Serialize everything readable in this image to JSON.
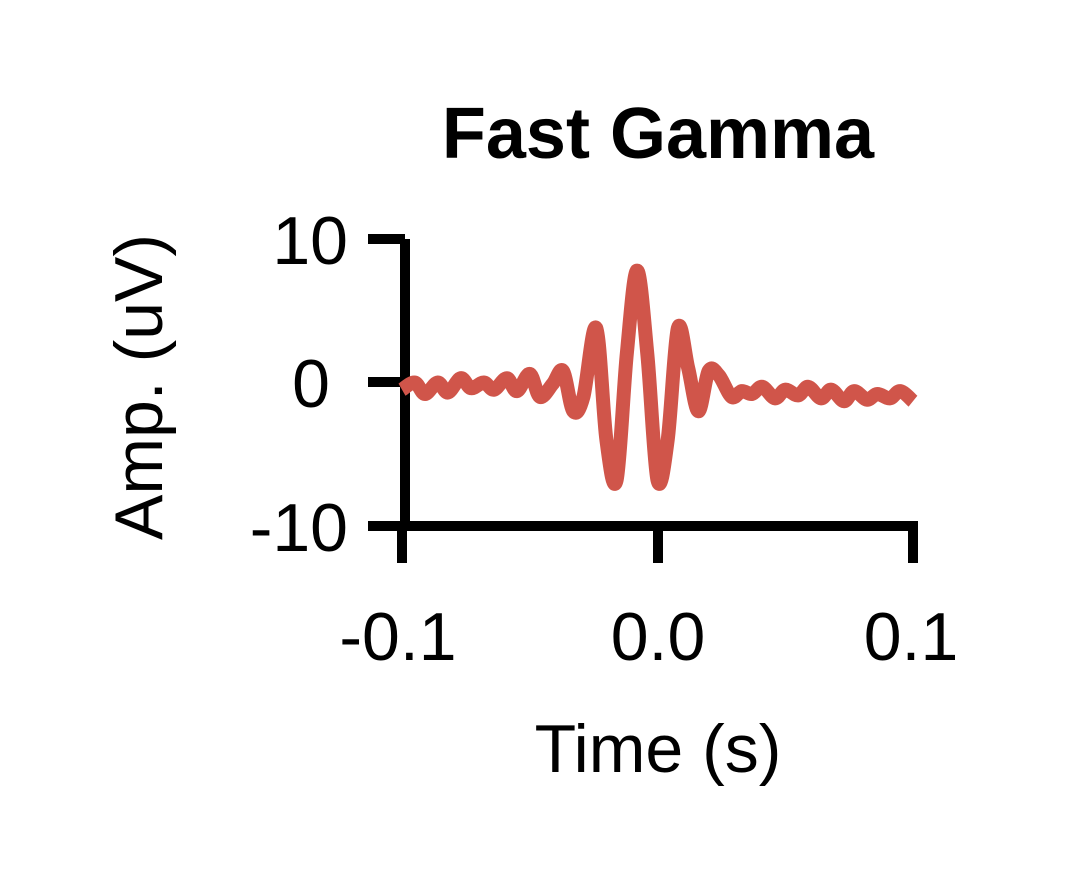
{
  "chart_data": {
    "type": "line",
    "title": "Fast Gamma",
    "xlabel": "Time (s)",
    "ylabel": "Amp. (uV)",
    "xlim": [
      -0.1,
      0.1
    ],
    "ylim": [
      -10,
      10
    ],
    "xticks": [
      -0.1,
      0.0,
      0.1
    ],
    "xtick_labels": [
      "-0.1",
      "0.0",
      "0.1"
    ],
    "yticks": [
      10,
      0,
      -10
    ],
    "ytick_labels": [
      "10",
      "0",
      "-10"
    ],
    "grid": false,
    "series": [
      {
        "color": "#d0554a",
        "x": [
          -0.1,
          -0.095,
          -0.091,
          -0.086,
          -0.082,
          -0.077,
          -0.073,
          -0.068,
          -0.064,
          -0.059,
          -0.055,
          -0.05,
          -0.046,
          -0.041,
          -0.037,
          -0.033,
          -0.029,
          -0.024,
          -0.02,
          -0.016,
          -0.012,
          -0.008,
          -0.004,
          0.0,
          0.004,
          0.008,
          0.012,
          0.016,
          0.02,
          0.024,
          0.029,
          0.033,
          0.037,
          0.041,
          0.046,
          0.05,
          0.055,
          0.059,
          0.064,
          0.068,
          0.073,
          0.077,
          0.082,
          0.086,
          0.091,
          0.095,
          0.1
        ],
        "y": [
          -0.5,
          0.0,
          -0.8,
          0.0,
          -0.7,
          0.3,
          -0.4,
          0.0,
          -0.5,
          0.3,
          -0.6,
          0.6,
          -1.0,
          -0.1,
          0.8,
          -2.0,
          -1.0,
          3.8,
          -4.0,
          -6.8,
          2.0,
          7.8,
          2.0,
          -6.8,
          -4.0,
          3.8,
          1.0,
          -2.0,
          0.8,
          0.5,
          -1.0,
          -0.6,
          -0.8,
          -0.3,
          -1.1,
          -0.5,
          -0.9,
          -0.3,
          -1.1,
          -0.5,
          -1.3,
          -0.6,
          -1.2,
          -0.8,
          -1.1,
          -0.6,
          -1.3
        ]
      }
    ]
  }
}
